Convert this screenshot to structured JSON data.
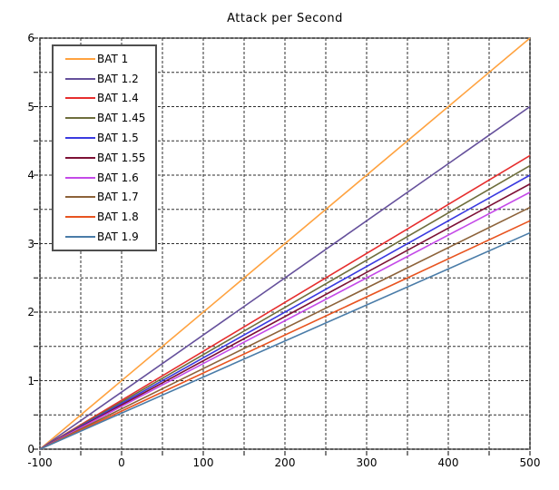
{
  "chart_data": {
    "type": "line",
    "title": "Attack per Second",
    "xlabel": "",
    "ylabel": "",
    "xlim": [
      -100,
      500
    ],
    "ylim": [
      0,
      6
    ],
    "x_major_ticks": [
      -100,
      0,
      100,
      200,
      300,
      400,
      500
    ],
    "y_major_ticks": [
      0,
      1,
      2,
      3,
      4,
      5,
      6
    ],
    "x_grid_step": 50,
    "y_grid_step": 0.5,
    "grid": "dashed",
    "grid_color": "#2e2e2e",
    "frame_color": "#8a8a8a",
    "legend_position": "top-left",
    "series": [
      {
        "name": "BAT 1",
        "bat": 1.0,
        "color": "#FFA23F",
        "x": [
          -100,
          500
        ],
        "y": [
          0,
          6.0
        ]
      },
      {
        "name": "BAT 1.2",
        "bat": 1.2,
        "color": "#65509B",
        "x": [
          -100,
          500
        ],
        "y": [
          0,
          5.0
        ]
      },
      {
        "name": "BAT 1.4",
        "bat": 1.4,
        "color": "#E62E2E",
        "x": [
          -100,
          500
        ],
        "y": [
          0,
          4.2857
        ]
      },
      {
        "name": "BAT 1.45",
        "bat": 1.45,
        "color": "#6E6E3C",
        "x": [
          -100,
          500
        ],
        "y": [
          0,
          4.1379
        ]
      },
      {
        "name": "BAT 1.5",
        "bat": 1.5,
        "color": "#3A3AE0",
        "x": [
          -100,
          500
        ],
        "y": [
          0,
          4.0
        ]
      },
      {
        "name": "BAT 1.55",
        "bat": 1.55,
        "color": "#7D1135",
        "x": [
          -100,
          500
        ],
        "y": [
          0,
          3.871
        ]
      },
      {
        "name": "BAT 1.6",
        "bat": 1.6,
        "color": "#C44AE8",
        "x": [
          -100,
          500
        ],
        "y": [
          0,
          3.75
        ]
      },
      {
        "name": "BAT 1.7",
        "bat": 1.7,
        "color": "#8C6239",
        "x": [
          -100,
          500
        ],
        "y": [
          0,
          3.5294
        ]
      },
      {
        "name": "BAT 1.8",
        "bat": 1.8,
        "color": "#E85420",
        "x": [
          -100,
          500
        ],
        "y": [
          0,
          3.3333
        ]
      },
      {
        "name": "BAT 1.9",
        "bat": 1.9,
        "color": "#4A7CA8",
        "x": [
          -100,
          500
        ],
        "y": [
          0,
          3.1579
        ]
      }
    ]
  }
}
